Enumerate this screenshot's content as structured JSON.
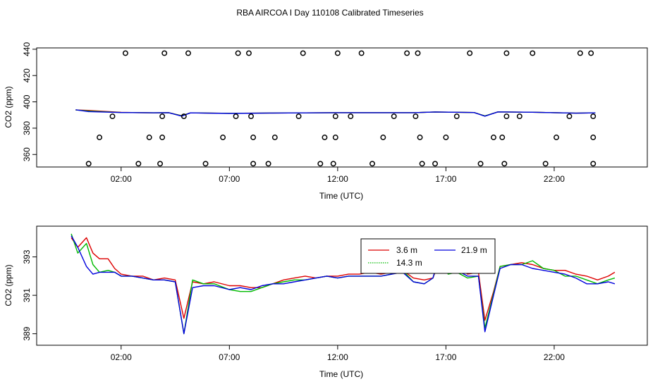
{
  "title": "RBA AIRCOA I  Day 110108  Calibrated Timeseries",
  "chart_data": [
    {
      "type": "line",
      "xlabel": "Time (UTC)",
      "ylabel": "CO2 (ppm)",
      "xlim": [
        -1.9,
        26.3
      ],
      "ylim": [
        350.5,
        441
      ],
      "xticks": [
        2,
        7,
        12,
        17,
        22
      ],
      "xtick_labels": [
        "02:00",
        "07:00",
        "12:00",
        "17:00",
        "22:00"
      ],
      "yticks": [
        360,
        380,
        400,
        420,
        440
      ],
      "ytick_labels": [
        "360",
        "380",
        "400",
        "420",
        "440"
      ],
      "series": [
        {
          "color": "#dd0000",
          "points": [
            [
              -0.1,
              393.8
            ],
            [
              0.5,
              393.5
            ],
            [
              2,
              392
            ],
            [
              3.5,
              391.6
            ],
            [
              4.2,
              391.8
            ],
            [
              4.8,
              389.5
            ],
            [
              5.2,
              391.6
            ],
            [
              7,
              391.3
            ],
            [
              9,
              391.5
            ],
            [
              12,
              391.8
            ],
            [
              15.5,
              391.8
            ],
            [
              16.5,
              392.3
            ],
            [
              18.3,
              391.9
            ],
            [
              18.8,
              389.3
            ],
            [
              19.4,
              392.4
            ],
            [
              21,
              392.1
            ],
            [
              23,
              391.4
            ],
            [
              23.9,
              391.6
            ]
          ]
        },
        {
          "color": "#00bb00",
          "points": [
            [
              -0.1,
              393.8
            ],
            [
              0.5,
              393
            ],
            [
              2,
              391.9
            ],
            [
              3.5,
              391.7
            ],
            [
              4.2,
              391.8
            ],
            [
              4.8,
              389.4
            ],
            [
              5.2,
              391.6
            ],
            [
              7,
              391.3
            ],
            [
              9,
              391.5
            ],
            [
              12,
              391.8
            ],
            [
              15.5,
              391.8
            ],
            [
              16.5,
              392.3
            ],
            [
              18.3,
              391.9
            ],
            [
              18.8,
              389.3
            ],
            [
              19.4,
              392.4
            ],
            [
              21,
              392.1
            ],
            [
              23,
              391.4
            ],
            [
              23.9,
              391.6
            ]
          ]
        },
        {
          "color": "#0000dd",
          "points": [
            [
              -0.1,
              394
            ],
            [
              0.5,
              392.6
            ],
            [
              2,
              391.9
            ],
            [
              3.5,
              391.7
            ],
            [
              4.2,
              391.8
            ],
            [
              4.8,
              389.1
            ],
            [
              5.2,
              391.6
            ],
            [
              7,
              391.2
            ],
            [
              9,
              391.5
            ],
            [
              12,
              391.8
            ],
            [
              15.5,
              391.8
            ],
            [
              16.5,
              392.3
            ],
            [
              18.3,
              391.9
            ],
            [
              18.8,
              389.1
            ],
            [
              19.4,
              392.4
            ],
            [
              21,
              392.1
            ],
            [
              23,
              391.4
            ],
            [
              23.9,
              391.6
            ]
          ]
        }
      ],
      "calibration_points": [
        [
          0.5,
          353
        ],
        [
          1,
          373
        ],
        [
          1.6,
          389
        ],
        [
          2.2,
          437
        ],
        [
          2.8,
          353
        ],
        [
          3.3,
          373
        ],
        [
          3.8,
          353
        ],
        [
          3.9,
          373
        ],
        [
          3.9,
          389
        ],
        [
          4,
          437
        ],
        [
          4.9,
          389
        ],
        [
          5.1,
          437
        ],
        [
          5.9,
          353
        ],
        [
          6.7,
          373
        ],
        [
          7.3,
          389
        ],
        [
          7.4,
          437
        ],
        [
          7.9,
          437
        ],
        [
          8.0,
          389
        ],
        [
          8.1,
          373
        ],
        [
          8.1,
          353
        ],
        [
          8.8,
          353
        ],
        [
          9.1,
          373
        ],
        [
          10.2,
          389
        ],
        [
          10.4,
          437
        ],
        [
          11.2,
          353
        ],
        [
          11.4,
          373
        ],
        [
          11.8,
          353
        ],
        [
          11.9,
          373
        ],
        [
          11.9,
          389
        ],
        [
          12,
          437
        ],
        [
          12.6,
          389
        ],
        [
          13.1,
          437
        ],
        [
          13.6,
          353
        ],
        [
          14.1,
          373
        ],
        [
          14.6,
          389
        ],
        [
          15.2,
          437
        ],
        [
          15.6,
          389
        ],
        [
          15.7,
          437
        ],
        [
          15.8,
          373
        ],
        [
          15.9,
          353
        ],
        [
          16.5,
          353
        ],
        [
          17,
          373
        ],
        [
          17.5,
          389
        ],
        [
          18.1,
          437
        ],
        [
          18.6,
          353
        ],
        [
          19.2,
          373
        ],
        [
          19.6,
          373
        ],
        [
          19.7,
          353
        ],
        [
          19.8,
          389
        ],
        [
          19.8,
          437
        ],
        [
          20.4,
          389
        ],
        [
          21,
          437
        ],
        [
          21.6,
          353
        ],
        [
          22.1,
          373
        ],
        [
          22.7,
          389
        ],
        [
          23.2,
          437
        ],
        [
          23.7,
          437
        ],
        [
          23.8,
          389
        ],
        [
          23.8,
          373
        ],
        [
          23.8,
          353
        ]
      ]
    },
    {
      "type": "line",
      "xlabel": "Time (UTC)",
      "ylabel": "CO2 (ppm)",
      "xlim": [
        -1.9,
        26.3
      ],
      "ylim": [
        388.4,
        394.6
      ],
      "xticks": [
        2,
        7,
        12,
        17,
        22
      ],
      "xtick_labels": [
        "02:00",
        "07:00",
        "12:00",
        "17:00",
        "22:00"
      ],
      "yticks": [
        389,
        391,
        393
      ],
      "ytick_labels": [
        "389",
        "391",
        "393"
      ],
      "legend": {
        "position": "top-center"
      },
      "series": [
        {
          "name": "3.6 m",
          "color": "#dd0000",
          "points": [
            [
              -0.3,
              394
            ],
            [
              0,
              393.5
            ],
            [
              0.4,
              394
            ],
            [
              0.7,
              393.2
            ],
            [
              1,
              392.9
            ],
            [
              1.4,
              392.9
            ],
            [
              1.7,
              392.4
            ],
            [
              2,
              392.1
            ],
            [
              2.5,
              392
            ],
            [
              3,
              392
            ],
            [
              3.5,
              391.8
            ],
            [
              4,
              391.9
            ],
            [
              4.5,
              391.8
            ],
            [
              4.9,
              389.8
            ],
            [
              5.3,
              391.7
            ],
            [
              5.8,
              391.6
            ],
            [
              6.3,
              391.7
            ],
            [
              7,
              391.5
            ],
            [
              7.5,
              391.5
            ],
            [
              8,
              391.4
            ],
            [
              8.5,
              391.4
            ],
            [
              9,
              391.6
            ],
            [
              9.5,
              391.8
            ],
            [
              10,
              391.9
            ],
            [
              10.5,
              392
            ],
            [
              11,
              391.9
            ],
            [
              11.5,
              392
            ],
            [
              12,
              392
            ],
            [
              12.5,
              392.1
            ],
            [
              13,
              392.1
            ],
            [
              13.5,
              392.2
            ],
            [
              14,
              392.1
            ],
            [
              14.5,
              392.2
            ],
            [
              15,
              392.3
            ],
            [
              15.5,
              391.9
            ],
            [
              16,
              391.8
            ],
            [
              16.4,
              391.9
            ],
            [
              16.7,
              392.8
            ],
            [
              17.1,
              392.5
            ],
            [
              17.5,
              392.6
            ],
            [
              18,
              392.1
            ],
            [
              18.5,
              392.2
            ],
            [
              18.8,
              389.7
            ],
            [
              19.2,
              391.2
            ],
            [
              19.5,
              392.5
            ],
            [
              20,
              392.6
            ],
            [
              20.5,
              392.7
            ],
            [
              21,
              392.6
            ],
            [
              21.5,
              392.4
            ],
            [
              22,
              392.3
            ],
            [
              22.5,
              392.3
            ],
            [
              23,
              392.1
            ],
            [
              23.5,
              392
            ],
            [
              24,
              391.8
            ],
            [
              24.5,
              392
            ],
            [
              24.8,
              392.2
            ]
          ]
        },
        {
          "name": "14.3 m",
          "color": "#00bb00",
          "points": [
            [
              -0.3,
              394.2
            ],
            [
              0,
              393.2
            ],
            [
              0.4,
              393.7
            ],
            [
              0.7,
              392.6
            ],
            [
              1,
              392.2
            ],
            [
              1.4,
              392.3
            ],
            [
              1.7,
              392.2
            ],
            [
              2,
              392
            ],
            [
              2.5,
              392
            ],
            [
              3,
              391.9
            ],
            [
              3.5,
              391.8
            ],
            [
              4,
              391.8
            ],
            [
              4.5,
              391.7
            ],
            [
              4.9,
              389
            ],
            [
              5.3,
              391.8
            ],
            [
              5.8,
              391.6
            ],
            [
              6.3,
              391.6
            ],
            [
              7,
              391.3
            ],
            [
              7.5,
              391.2
            ],
            [
              8,
              391.2
            ],
            [
              8.5,
              391.4
            ],
            [
              9,
              391.6
            ],
            [
              9.5,
              391.7
            ],
            [
              10,
              391.8
            ],
            [
              10.5,
              391.8
            ],
            [
              11,
              391.9
            ],
            [
              11.5,
              392
            ],
            [
              12,
              391.9
            ],
            [
              12.5,
              392
            ],
            [
              13,
              392
            ],
            [
              13.5,
              392
            ],
            [
              14,
              392
            ],
            [
              14.5,
              392.1
            ],
            [
              15,
              392.3
            ],
            [
              15.5,
              391.7
            ],
            [
              16,
              391.6
            ],
            [
              16.4,
              391.9
            ],
            [
              16.7,
              393
            ],
            [
              17.1,
              392.1
            ],
            [
              17.5,
              392.2
            ],
            [
              18,
              391.9
            ],
            [
              18.5,
              392
            ],
            [
              18.8,
              389.3
            ],
            [
              19.2,
              391.1
            ],
            [
              19.5,
              392.5
            ],
            [
              20,
              392.6
            ],
            [
              20.5,
              392.6
            ],
            [
              21,
              392.8
            ],
            [
              21.5,
              392.4
            ],
            [
              22,
              392.3
            ],
            [
              22.5,
              392
            ],
            [
              23,
              392
            ],
            [
              23.5,
              391.8
            ],
            [
              24,
              391.6
            ],
            [
              24.5,
              391.8
            ],
            [
              24.8,
              391.9
            ]
          ]
        },
        {
          "name": "21.9 m",
          "color": "#0000dd",
          "points": [
            [
              -0.3,
              394.1
            ],
            [
              0,
              393.5
            ],
            [
              0.4,
              392.5
            ],
            [
              0.7,
              392.1
            ],
            [
              1,
              392.2
            ],
            [
              1.4,
              392.2
            ],
            [
              1.7,
              392.2
            ],
            [
              2,
              392
            ],
            [
              2.5,
              392
            ],
            [
              3,
              391.9
            ],
            [
              3.5,
              391.8
            ],
            [
              4,
              391.8
            ],
            [
              4.5,
              391.7
            ],
            [
              4.9,
              389
            ],
            [
              5.3,
              391.4
            ],
            [
              5.8,
              391.5
            ],
            [
              6.3,
              391.5
            ],
            [
              7,
              391.3
            ],
            [
              7.5,
              391.4
            ],
            [
              8,
              391.3
            ],
            [
              8.5,
              391.5
            ],
            [
              9,
              391.6
            ],
            [
              9.5,
              391.6
            ],
            [
              10,
              391.7
            ],
            [
              10.5,
              391.8
            ],
            [
              11,
              391.9
            ],
            [
              11.5,
              392
            ],
            [
              12,
              391.9
            ],
            [
              12.5,
              392
            ],
            [
              13,
              392
            ],
            [
              13.5,
              392
            ],
            [
              14,
              392
            ],
            [
              14.5,
              392.1
            ],
            [
              15,
              392.2
            ],
            [
              15.5,
              391.7
            ],
            [
              16,
              391.6
            ],
            [
              16.4,
              391.9
            ],
            [
              16.7,
              393.1
            ],
            [
              17.1,
              392.3
            ],
            [
              17.5,
              392.3
            ],
            [
              18,
              392
            ],
            [
              18.5,
              392
            ],
            [
              18.8,
              389.1
            ],
            [
              19.2,
              391
            ],
            [
              19.5,
              392.4
            ],
            [
              20,
              392.6
            ],
            [
              20.5,
              392.6
            ],
            [
              21,
              392.4
            ],
            [
              21.5,
              392.3
            ],
            [
              22,
              392.2
            ],
            [
              22.5,
              392.1
            ],
            [
              23,
              391.9
            ],
            [
              23.5,
              391.6
            ],
            [
              24,
              391.6
            ],
            [
              24.5,
              391.7
            ],
            [
              24.8,
              391.6
            ]
          ]
        }
      ]
    }
  ]
}
